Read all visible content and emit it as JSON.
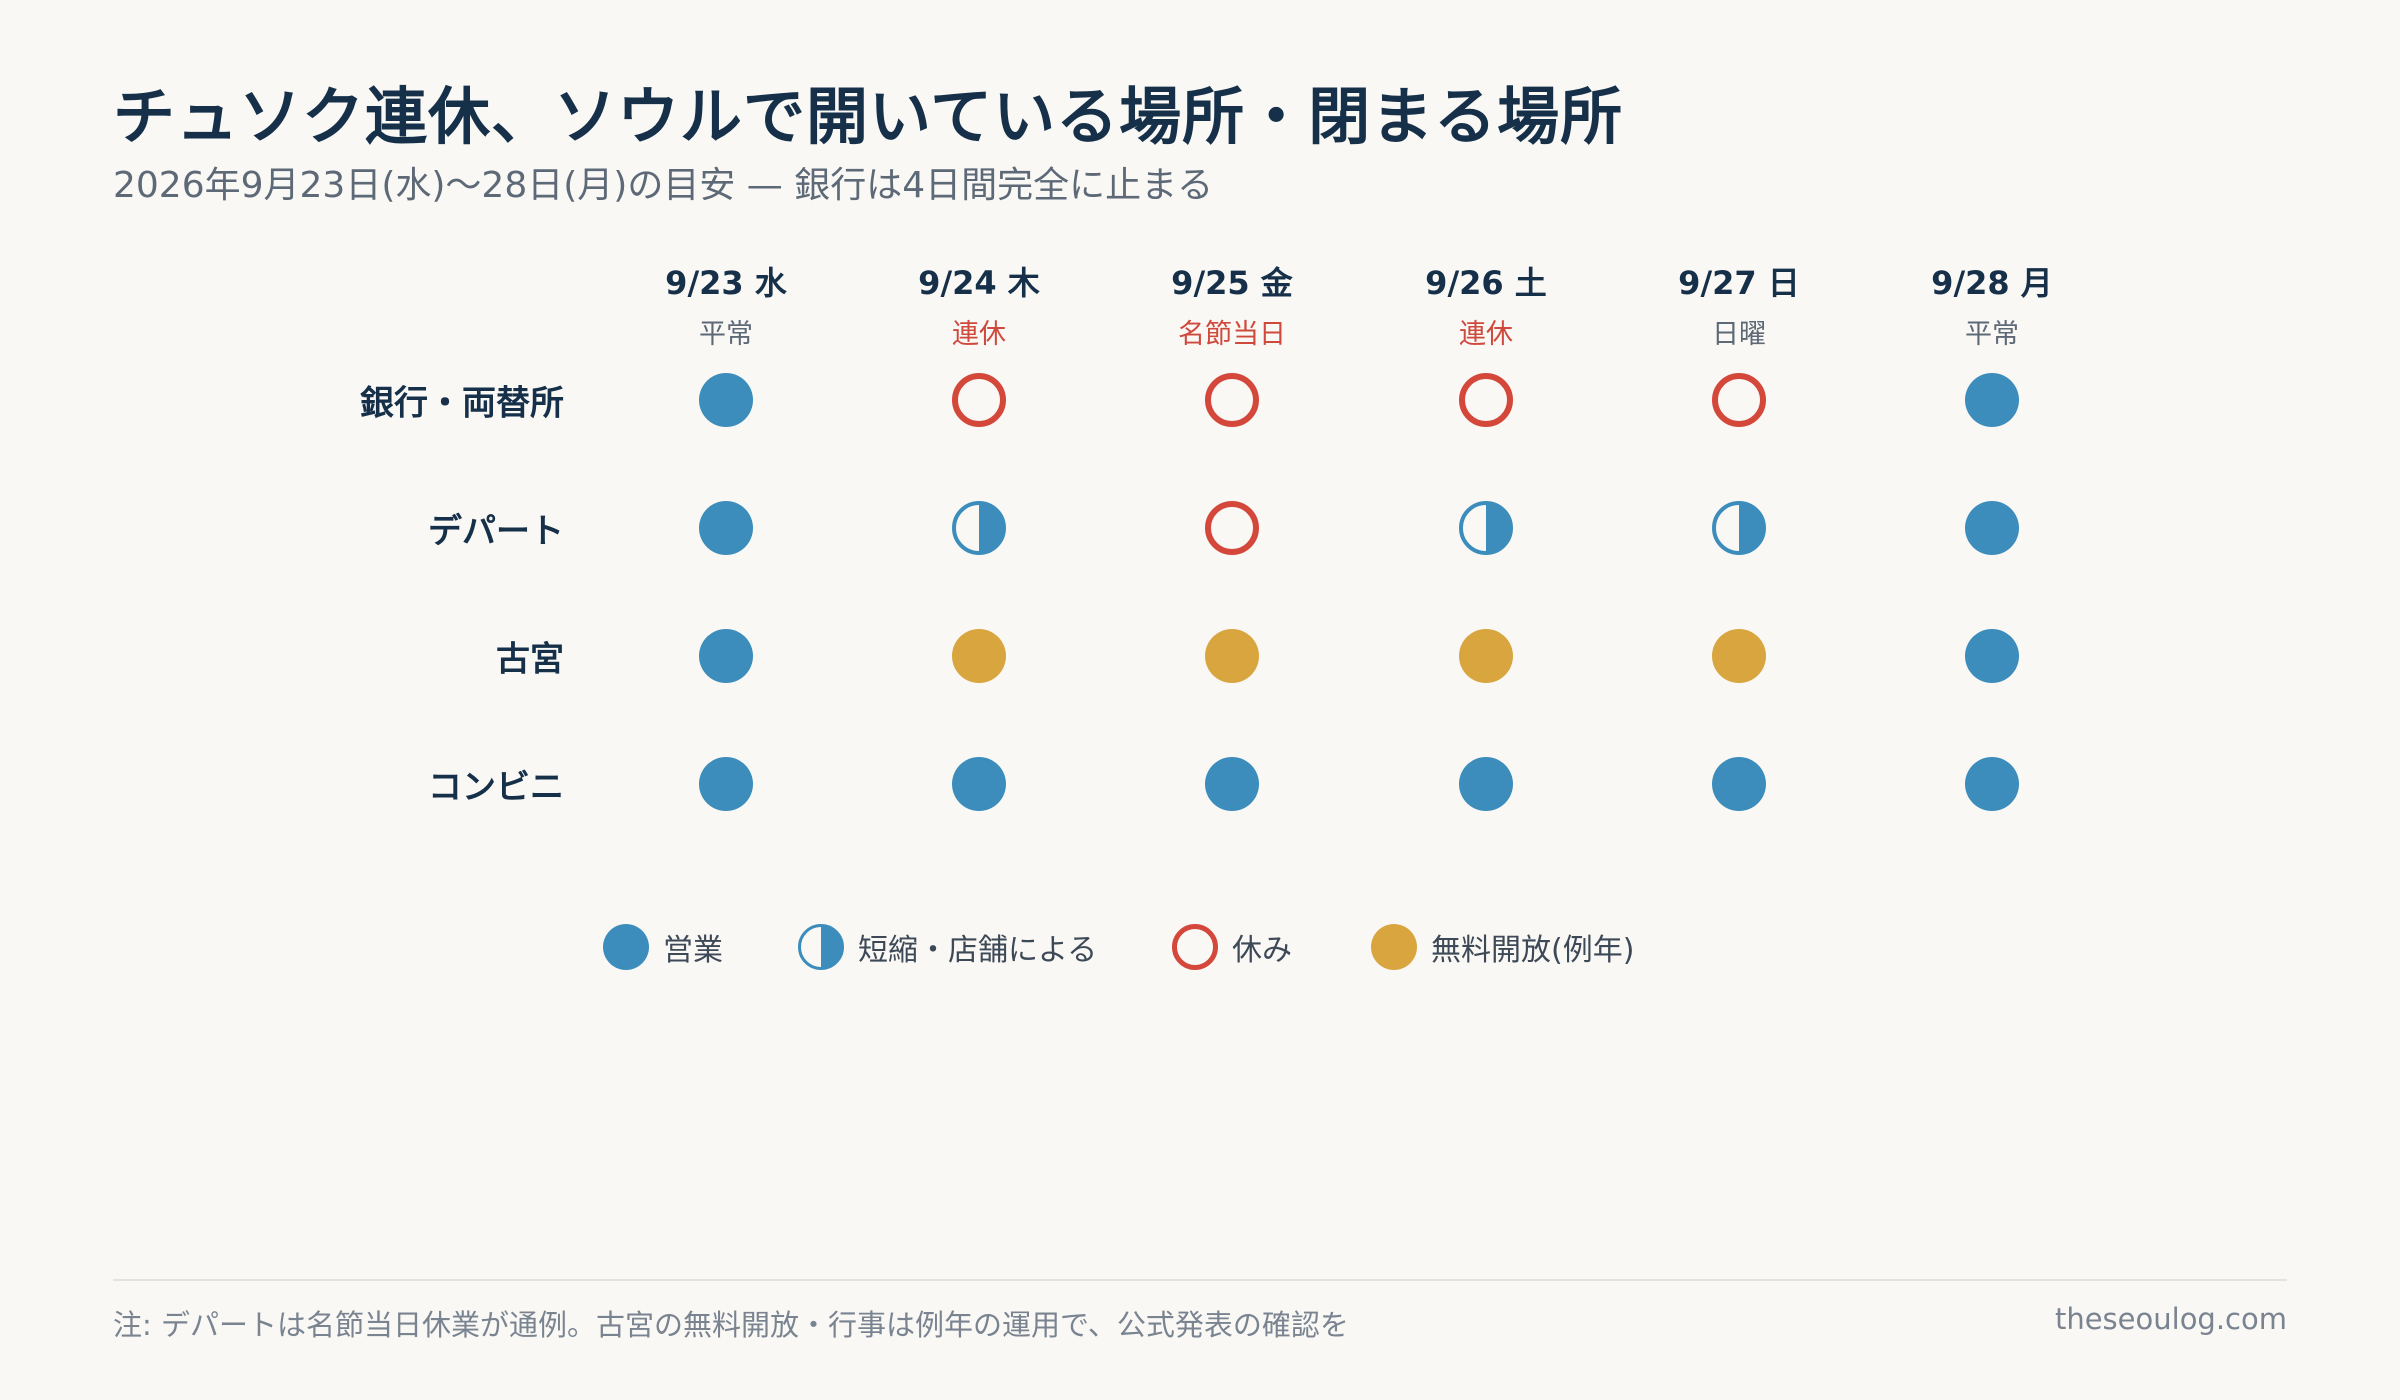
{
  "header": {
    "title": "チュソク連休、ソウルで開いている場所・閉まる場所",
    "subtitle": "2026年9月23日(水)〜28日(月)の目安 — 銀行は4日間完全に止まる"
  },
  "days": [
    {
      "date": "9/23 水",
      "type": "平常",
      "holiday": false
    },
    {
      "date": "9/24 木",
      "type": "連休",
      "holiday": true
    },
    {
      "date": "9/25 金",
      "type": "名節当日",
      "holiday": true
    },
    {
      "date": "9/26 土",
      "type": "連休",
      "holiday": true
    },
    {
      "date": "9/27 日",
      "type": "日曜",
      "holiday": false
    },
    {
      "date": "9/28 月",
      "type": "平常",
      "holiday": false
    }
  ],
  "rows": [
    {
      "label": "銀行・両替所",
      "status": [
        "open",
        "closed",
        "closed",
        "closed",
        "closed",
        "open"
      ]
    },
    {
      "label": "デパート",
      "status": [
        "open",
        "partial",
        "closed",
        "partial",
        "partial",
        "open"
      ]
    },
    {
      "label": "古宮",
      "status": [
        "open",
        "free",
        "free",
        "free",
        "free",
        "open"
      ]
    },
    {
      "label": "コンビニ",
      "status": [
        "open",
        "open",
        "open",
        "open",
        "open",
        "open"
      ]
    }
  ],
  "legend": [
    {
      "key": "open",
      "label": "営業"
    },
    {
      "key": "partial",
      "label": "短縮・店舗による"
    },
    {
      "key": "closed",
      "label": "休み"
    },
    {
      "key": "free",
      "label": "無料開放(例年)"
    }
  ],
  "colors": {
    "open": "#3c8dbc",
    "closed": "#d4483c",
    "free": "#d9a53f",
    "holiday_text": "#cf4a3d"
  },
  "footer": {
    "note": "注: デパートは名節当日休業が通例。古宮の無料開放・行事は例年の運用で、公式発表の確認を",
    "site": "theseoulog.com"
  }
}
